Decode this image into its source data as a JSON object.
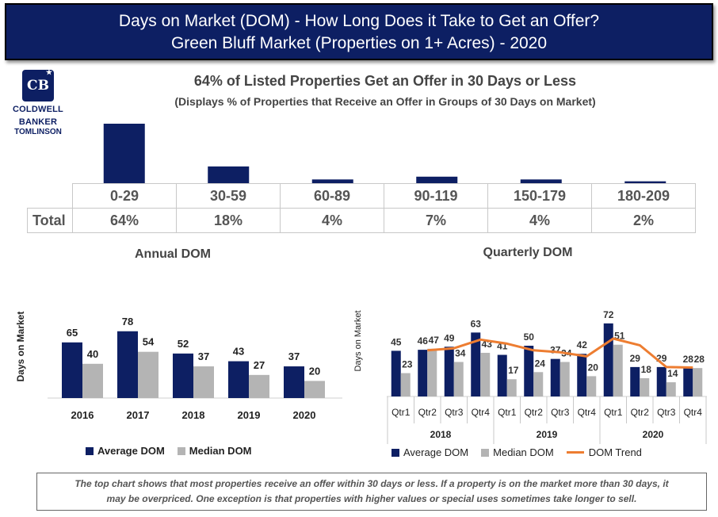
{
  "header": {
    "title_line1": "Days on Market (DOM) - How Long Does it Take to Get an Offer?",
    "title_line2": "Green Bluff Market (Properties on 1+ Acres) - 2020"
  },
  "logo": {
    "mark": "CB",
    "line1": "COLDWELL",
    "line2": "BANKER",
    "line3": "TOMLINSON"
  },
  "colors": {
    "navy": "#0d1f63",
    "gray": "#b4b4b4",
    "orange": "#ed7d31"
  },
  "chart_data": [
    {
      "type": "bar",
      "title": "64% of Listed Properties Get an Offer in 30 Days or Less",
      "subtitle": "(Displays % of Properties that Receive an Offer in Groups of 30 Days on Market)",
      "row_label": "Total",
      "categories": [
        "0-29",
        "30-59",
        "60-89",
        "90-119",
        "150-179",
        "180-209"
      ],
      "values": [
        64,
        18,
        4,
        7,
        4,
        2
      ],
      "value_labels": [
        "64%",
        "18%",
        "4%",
        "7%",
        "4%",
        "2%"
      ],
      "ylim": [
        0,
        64
      ],
      "grid": false
    },
    {
      "type": "bar",
      "title": "Annual DOM",
      "ylabel": "Days on Market",
      "categories": [
        "2016",
        "2017",
        "2018",
        "2019",
        "2020"
      ],
      "series": [
        {
          "name": "Average DOM",
          "values": [
            65,
            78,
            52,
            43,
            37
          ]
        },
        {
          "name": "Median DOM",
          "values": [
            40,
            54,
            37,
            27,
            20
          ]
        }
      ],
      "ylim": [
        0,
        80
      ],
      "legend": "bottom",
      "grid": false
    },
    {
      "type": "bar",
      "title": "Quarterly DOM",
      "ylabel": "Days on Market",
      "categories": [
        "Qtr1",
        "Qtr2",
        "Qtr3",
        "Qtr4",
        "Qtr1",
        "Qtr2",
        "Qtr3",
        "Qtr4",
        "Qtr1",
        "Qtr2",
        "Qtr3",
        "Qtr4"
      ],
      "groups": [
        {
          "label": "2018",
          "count": 4
        },
        {
          "label": "2019",
          "count": 4
        },
        {
          "label": "2020",
          "count": 4
        }
      ],
      "series": [
        {
          "name": "Average DOM",
          "values": [
            45,
            46,
            49,
            63,
            41,
            50,
            37,
            42,
            72,
            29,
            29,
            28
          ]
        },
        {
          "name": "Median DOM",
          "values": [
            23,
            47,
            34,
            43,
            17,
            24,
            34,
            20,
            51,
            18,
            14,
            28
          ]
        }
      ],
      "trend": {
        "name": "DOM Trend"
      },
      "ylim": [
        0,
        75
      ],
      "legend": "bottom",
      "grid": false
    }
  ],
  "footnote": {
    "line1": "The top chart shows that most properties receive an offer within 30 days or less. If a property is on the market more than 30 days, it",
    "line2": "may be overpriced. One exception is that properties with higher values or special uses sometimes take longer to sell."
  }
}
